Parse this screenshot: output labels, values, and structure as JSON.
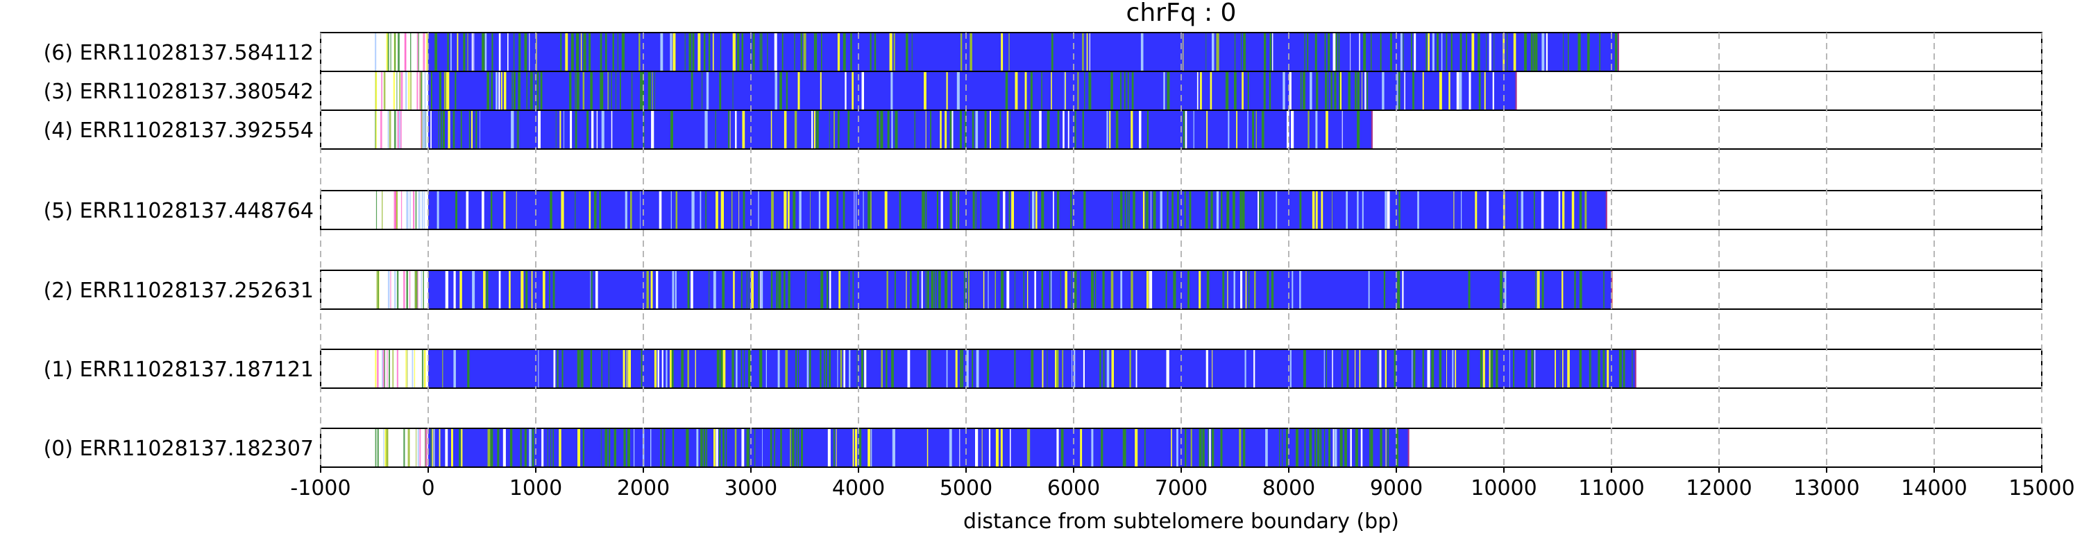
{
  "chart_data": {
    "type": "read-track",
    "title": "chrFq : 0",
    "xlabel": "distance from subtelomere boundary (bp)",
    "xlim": [
      -1000,
      15000
    ],
    "xticks": [
      -1000,
      0,
      1000,
      2000,
      3000,
      4000,
      5000,
      6000,
      7000,
      8000,
      9000,
      10000,
      11000,
      12000,
      13000,
      14000,
      15000
    ],
    "xtick_labels": [
      "-1000",
      "0",
      "1000",
      "2000",
      "3000",
      "4000",
      "5000",
      "6000",
      "7000",
      "8000",
      "9000",
      "10000",
      "11000",
      "12000",
      "13000",
      "14000",
      "15000"
    ],
    "grid_x": true,
    "colors": {
      "blue": "#3333ff",
      "green": "#2e8b2e",
      "yellow": "#ffff33",
      "white": "#ffffff",
      "lightblue": "#a6c8ff",
      "pink": "#ff66cc",
      "red": "#ff3333",
      "olive": "#99bb33"
    },
    "reads": [
      {
        "label": "(6) ERR11028137.584112",
        "start": -500,
        "end": 11070,
        "group": 0
      },
      {
        "label": "(3) ERR11028137.380542",
        "start": -500,
        "end": 10120,
        "group": 0
      },
      {
        "label": "(4) ERR11028137.392554",
        "start": -500,
        "end": 8780,
        "group": 0
      },
      {
        "label": "(5) ERR11028137.448764",
        "start": -500,
        "end": 10960,
        "group": 1
      },
      {
        "label": "(2) ERR11028137.252631",
        "start": -500,
        "end": 11010,
        "group": 2
      },
      {
        "label": "(1) ERR11028137.187121",
        "start": -500,
        "end": 11230,
        "group": 3
      },
      {
        "label": "(0) ERR11028137.182307",
        "start": -500,
        "end": 9120,
        "group": 4
      }
    ]
  }
}
